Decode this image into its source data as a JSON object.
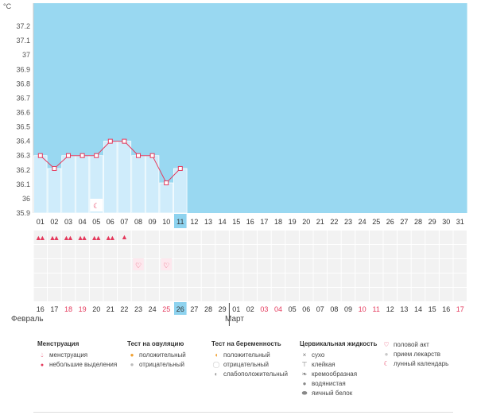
{
  "unit": "°C",
  "y_ticks": [
    "37.2",
    "37.1",
    "37",
    "36.9",
    "36.8",
    "36.7",
    "36.6",
    "36.5",
    "36.4",
    "36.3",
    "36.2",
    "36.1",
    "36",
    "35.9"
  ],
  "cycle_days": [
    "01",
    "02",
    "03",
    "04",
    "05",
    "06",
    "07",
    "08",
    "09",
    "10",
    "11",
    "12",
    "13",
    "14",
    "15",
    "16",
    "17",
    "18",
    "19",
    "20",
    "21",
    "22",
    "23",
    "24",
    "25",
    "26",
    "27",
    "28",
    "29",
    "30",
    "31"
  ],
  "current_day_index": 10,
  "temperatures": [
    36.3,
    36.21,
    36.3,
    36.3,
    36.3,
    36.4,
    36.4,
    36.3,
    36.3,
    36.11,
    36.21
  ],
  "menstruation_marks": [
    "full",
    "full",
    "full",
    "full",
    "full",
    "full",
    "light"
  ],
  "lunar_day_index": 4,
  "intercourse_day_indices": [
    7,
    9
  ],
  "calendar": [
    {
      "d": "16",
      "red": false
    },
    {
      "d": "17",
      "red": false
    },
    {
      "d": "18",
      "red": true
    },
    {
      "d": "19",
      "red": true
    },
    {
      "d": "20",
      "red": false
    },
    {
      "d": "21",
      "red": false
    },
    {
      "d": "22",
      "red": false
    },
    {
      "d": "23",
      "red": false
    },
    {
      "d": "24",
      "red": false
    },
    {
      "d": "25",
      "red": true
    },
    {
      "d": "26",
      "red": false
    },
    {
      "d": "27",
      "red": false
    },
    {
      "d": "28",
      "red": false
    },
    {
      "d": "29",
      "red": false
    },
    {
      "d": "01",
      "red": false
    },
    {
      "d": "02",
      "red": false
    },
    {
      "d": "03",
      "red": true
    },
    {
      "d": "04",
      "red": true
    },
    {
      "d": "05",
      "red": false
    },
    {
      "d": "06",
      "red": false
    },
    {
      "d": "07",
      "red": false
    },
    {
      "d": "08",
      "red": false
    },
    {
      "d": "09",
      "red": false
    },
    {
      "d": "10",
      "red": true
    },
    {
      "d": "11",
      "red": true
    },
    {
      "d": "12",
      "red": false
    },
    {
      "d": "13",
      "red": false
    },
    {
      "d": "14",
      "red": false
    },
    {
      "d": "15",
      "red": false
    },
    {
      "d": "16",
      "red": false
    },
    {
      "d": "17",
      "red": true
    }
  ],
  "months": {
    "first": "Февраль",
    "second": "Март"
  },
  "colors": {
    "sky": "#99d8f1",
    "bar": "#cfecfb",
    "accent": "#e4395c",
    "today": "#8ed3ef",
    "grid_cell": "#f2f2f2"
  },
  "legend": {
    "menstruation": {
      "title": "Менструация",
      "items": [
        "менструация",
        "небольшие выделения"
      ]
    },
    "ovulation": {
      "title": "Тест на овуляцию",
      "items": [
        "положительный",
        "отрицательный"
      ]
    },
    "pregnancy": {
      "title": "Тест на беременность",
      "items": [
        "положительный",
        "отрицательный",
        "слабоположительный"
      ]
    },
    "cervical": {
      "title": "Цервикальная жидкость",
      "items": [
        "сухо",
        "клейкая",
        "кремообразная",
        "водянистая",
        "яичный белок"
      ]
    },
    "other": {
      "items": [
        "половой акт",
        "прием лекарств",
        "лунный календарь"
      ]
    }
  }
}
